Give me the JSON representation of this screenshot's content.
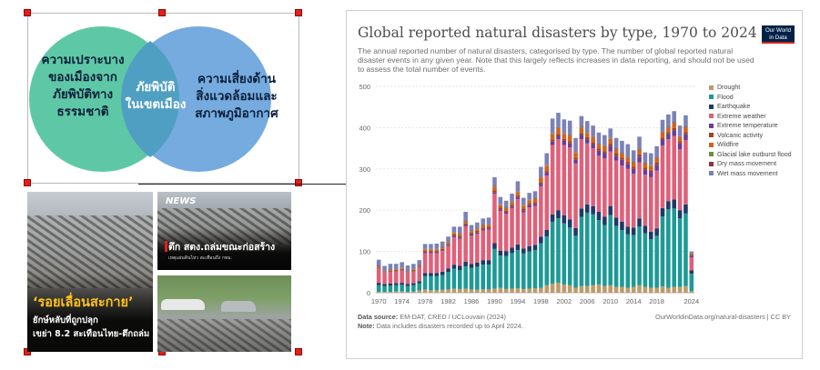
{
  "venn": {
    "left_label": [
      "ความเปราะบาง",
      "ของเมืองจาก",
      "ภัยพิบัติทาง",
      "ธรรมชาติ"
    ],
    "center_label": [
      "ภัยพิบัติ",
      "ในเขตเมือง"
    ],
    "right_label": [
      "ความเสี่ยงด้าน",
      "สิ่งแวดล้อมและ",
      "สภาพภูมิอากาศ"
    ],
    "colors": {
      "left": "#5ec8a6",
      "right": "#6ea7dc",
      "overlap": "#4f9fc2"
    }
  },
  "photo_a": {
    "title": "‘รอยเลื่อนสะกาย’",
    "subtitle": [
      "ยักษ์หลับที่ถูกปลุก",
      "เขย่า 8.2 สะเทือนไทย-ตึกถล่ม"
    ]
  },
  "photo_b": {
    "badge": "NEWS",
    "title": "ตึก สตง.ถล่มขณะก่อสร้าง",
    "subtitle": "เหตุแผ่นดินไหว สะเทือนถึง กทม."
  },
  "chart": {
    "title": "Global reported natural disasters by type, 1970 to 2024",
    "subtitle": "The annual reported number of natural disasters, categorised by type. The number of global reported natural disaster events in any given year. Note that this largely reflects increases in data reporting, and should not be used to assess the total number of events.",
    "logo": [
      "Our World",
      "in Data"
    ],
    "source_label": "Data source:",
    "source": "EM-DAT, CRED / UCLouvain (2024)",
    "url": "OurWorldinData.org/natural-disasters | CC BY",
    "note_label": "Note:",
    "note": "Data includes disasters recorded up to April 2024."
  },
  "chart_data": {
    "type": "bar",
    "stacked": true,
    "ylim": [
      0,
      500
    ],
    "yticks": [
      0,
      100,
      200,
      300,
      400,
      500
    ],
    "xticks": [
      1970,
      1974,
      1978,
      1982,
      1986,
      1990,
      1994,
      1998,
      2002,
      2006,
      2010,
      2014,
      2018,
      2024
    ],
    "grid": true,
    "legend_position": "right",
    "years": [
      1970,
      1971,
      1972,
      1973,
      1974,
      1975,
      1976,
      1977,
      1978,
      1979,
      1980,
      1981,
      1982,
      1983,
      1984,
      1985,
      1986,
      1987,
      1988,
      1989,
      1990,
      1991,
      1992,
      1993,
      1994,
      1995,
      1996,
      1997,
      1998,
      1999,
      2000,
      2001,
      2002,
      2003,
      2004,
      2005,
      2006,
      2007,
      2008,
      2009,
      2010,
      2011,
      2012,
      2013,
      2014,
      2015,
      2016,
      2017,
      2018,
      2019,
      2020,
      2021,
      2022,
      2023,
      2024
    ],
    "totals": [
      80,
      65,
      70,
      70,
      74,
      66,
      70,
      79,
      118,
      118,
      119,
      124,
      136,
      160,
      160,
      196,
      164,
      170,
      180,
      182,
      280,
      232,
      223,
      240,
      270,
      230,
      242,
      246,
      305,
      338,
      422,
      436,
      420,
      417,
      375,
      428,
      416,
      405,
      388,
      382,
      398,
      375,
      368,
      360,
      345,
      378,
      340,
      338,
      355,
      419,
      432,
      440,
      405,
      430,
      100
    ],
    "series": [
      {
        "name": "Drought",
        "color": "#c09a69",
        "values": [
          2,
          2,
          2,
          3,
          3,
          2,
          3,
          5,
          8,
          6,
          6,
          7,
          8,
          10,
          9,
          10,
          8,
          7,
          8,
          8,
          10,
          12,
          9,
          10,
          11,
          9,
          10,
          11,
          12,
          18,
          22,
          24,
          20,
          18,
          12,
          16,
          16,
          18,
          20,
          16,
          18,
          14,
          14,
          12,
          14,
          18,
          14,
          12,
          12,
          15,
          12,
          14,
          14,
          16,
          4
        ]
      },
      {
        "name": "Flood",
        "color": "#1d9a95",
        "values": [
          16,
          14,
          15,
          15,
          16,
          14,
          15,
          18,
          32,
          34,
          34,
          36,
          42,
          48,
          46,
          54,
          52,
          56,
          60,
          60,
          96,
          78,
          80,
          86,
          92,
          86,
          90,
          92,
          108,
          118,
          150,
          156,
          148,
          140,
          126,
          168,
          178,
          172,
          156,
          148,
          170,
          148,
          138,
          130,
          126,
          142,
          130,
          118,
          126,
          170,
          190,
          190,
          166,
          176,
          42
        ]
      },
      {
        "name": "Earthquake",
        "color": "#1f3a68",
        "values": [
          6,
          5,
          5,
          5,
          5,
          5,
          5,
          5,
          8,
          8,
          8,
          8,
          9,
          10,
          10,
          11,
          10,
          10,
          11,
          11,
          14,
          12,
          12,
          13,
          14,
          12,
          13,
          13,
          16,
          16,
          18,
          20,
          20,
          20,
          19,
          20,
          20,
          20,
          20,
          20,
          22,
          20,
          20,
          18,
          18,
          20,
          18,
          18,
          18,
          20,
          20,
          22,
          20,
          22,
          8
        ]
      },
      {
        "name": "Extreme weather",
        "color": "#e0607a",
        "values": [
          34,
          26,
          28,
          28,
          30,
          26,
          28,
          32,
          48,
          48,
          48,
          50,
          54,
          66,
          66,
          86,
          68,
          70,
          72,
          74,
          120,
          96,
          90,
          96,
          110,
          88,
          94,
          94,
          122,
          132,
          168,
          172,
          170,
          174,
          156,
          168,
          148,
          140,
          136,
          142,
          132,
          138,
          136,
          140,
          130,
          136,
          124,
          132,
          140,
          152,
          150,
          154,
          148,
          156,
          32
        ]
      },
      {
        "name": "Extreme temperature",
        "color": "#6a3e99",
        "values": [
          1,
          1,
          1,
          1,
          1,
          1,
          1,
          1,
          2,
          2,
          2,
          2,
          2,
          3,
          3,
          3,
          3,
          3,
          3,
          3,
          4,
          4,
          4,
          4,
          5,
          5,
          5,
          5,
          6,
          7,
          8,
          8,
          10,
          10,
          9,
          10,
          10,
          10,
          12,
          12,
          14,
          12,
          14,
          12,
          12,
          14,
          12,
          12,
          14,
          14,
          12,
          14,
          14,
          14,
          4
        ]
      },
      {
        "name": "Volcanic activity",
        "color": "#a4431e",
        "values": [
          2,
          1,
          2,
          2,
          2,
          1,
          2,
          2,
          3,
          3,
          3,
          3,
          3,
          4,
          4,
          4,
          4,
          4,
          4,
          4,
          4,
          4,
          4,
          4,
          4,
          4,
          4,
          4,
          4,
          4,
          5,
          5,
          5,
          5,
          5,
          5,
          5,
          5,
          5,
          5,
          5,
          5,
          5,
          5,
          5,
          5,
          5,
          5,
          5,
          5,
          5,
          5,
          5,
          5,
          2
        ]
      },
      {
        "name": "Wildfire",
        "color": "#d1631c",
        "values": [
          2,
          2,
          2,
          2,
          2,
          2,
          2,
          2,
          3,
          3,
          3,
          3,
          3,
          4,
          4,
          4,
          4,
          4,
          5,
          5,
          8,
          6,
          6,
          6,
          8,
          7,
          7,
          8,
          11,
          13,
          14,
          14,
          12,
          14,
          12,
          13,
          10,
          12,
          10,
          12,
          12,
          10,
          10,
          10,
          10,
          11,
          10,
          11,
          11,
          12,
          11,
          12,
          10,
          12,
          3
        ]
      },
      {
        "name": "Glacial lake outburst flood",
        "color": "#6f8f3c",
        "values": [
          1,
          1,
          1,
          1,
          1,
          1,
          1,
          1,
          1,
          1,
          1,
          1,
          1,
          1,
          1,
          1,
          1,
          1,
          1,
          1,
          1,
          1,
          1,
          1,
          1,
          1,
          1,
          1,
          1,
          1,
          1,
          1,
          1,
          1,
          1,
          1,
          1,
          1,
          1,
          1,
          1,
          1,
          1,
          1,
          1,
          1,
          1,
          1,
          1,
          1,
          1,
          1,
          1,
          1,
          0
        ]
      },
      {
        "name": "Dry mass movement",
        "color": "#8c3441",
        "values": [
          1,
          1,
          1,
          1,
          1,
          1,
          1,
          1,
          1,
          1,
          1,
          1,
          1,
          1,
          1,
          1,
          1,
          1,
          1,
          1,
          2,
          1,
          1,
          1,
          1,
          1,
          1,
          1,
          1,
          1,
          1,
          1,
          1,
          1,
          1,
          1,
          1,
          1,
          1,
          1,
          1,
          1,
          1,
          1,
          1,
          1,
          1,
          1,
          1,
          1,
          1,
          1,
          1,
          1,
          0
        ]
      },
      {
        "name": "Wet mass movement",
        "color": "#7a82b7",
        "values": [
          15,
          12,
          13,
          12,
          13,
          13,
          12,
          12,
          12,
          12,
          13,
          13,
          13,
          13,
          16,
          22,
          13,
          14,
          15,
          15,
          21,
          18,
          16,
          19,
          24,
          17,
          17,
          17,
          24,
          28,
          35,
          35,
          33,
          34,
          34,
          26,
          27,
          26,
          27,
          25,
          23,
          26,
          29,
          31,
          28,
          30,
          25,
          28,
          27,
          29,
          30,
          27,
          26,
          27,
          5
        ]
      }
    ]
  }
}
